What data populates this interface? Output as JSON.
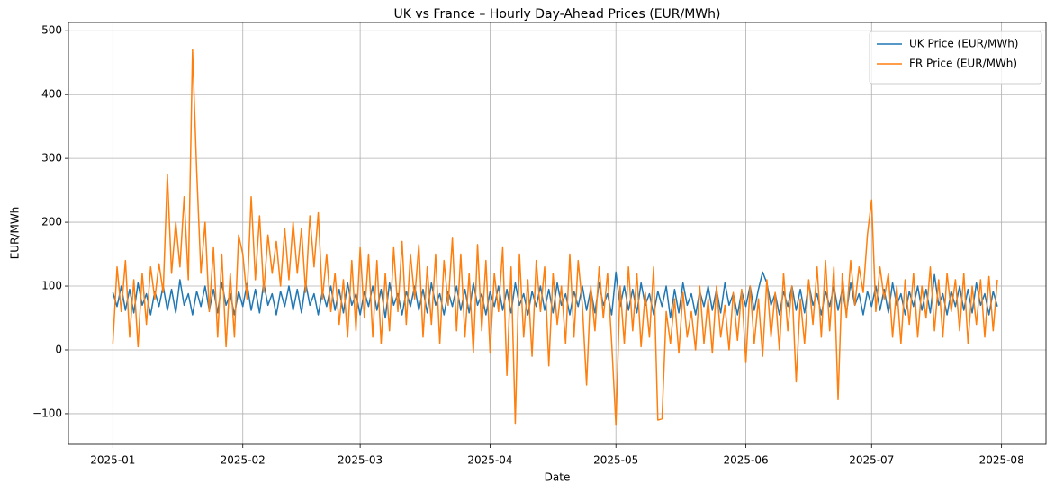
{
  "chart_data": {
    "type": "line",
    "title": "UK vs France – Hourly Day-Ahead Prices (EUR/MWh)",
    "x_label": "Date",
    "y_label": "EUR/MWh",
    "x": [
      0,
      1,
      2,
      3,
      4,
      5,
      6,
      7,
      8,
      9,
      10,
      11,
      12,
      13,
      14,
      15,
      16,
      17,
      18,
      19,
      20,
      21,
      22,
      23,
      24,
      25,
      26,
      27,
      28,
      29,
      30,
      31,
      32,
      33,
      34,
      35,
      36,
      37,
      38,
      39,
      40,
      41,
      42,
      43,
      44,
      45,
      46,
      47,
      48,
      49,
      50,
      51,
      52,
      53,
      54,
      55,
      56,
      57,
      58,
      59,
      60,
      61,
      62,
      63,
      64,
      65,
      66,
      67,
      68,
      69,
      70,
      71,
      72,
      73,
      74,
      75,
      76,
      77,
      78,
      79,
      80,
      81,
      82,
      83,
      84,
      85,
      86,
      87,
      88,
      89,
      90,
      91,
      92,
      93,
      94,
      95,
      96,
      97,
      98,
      99,
      100,
      101,
      102,
      103,
      104,
      105,
      106,
      107,
      108,
      109,
      110,
      111,
      112,
      113,
      114,
      115,
      116,
      117,
      118,
      119,
      120,
      121,
      122,
      123,
      124,
      125,
      126,
      127,
      128,
      129,
      130,
      131,
      132,
      133,
      134,
      135,
      136,
      137,
      138,
      139,
      140,
      141,
      142,
      143,
      144,
      145,
      146,
      147,
      148,
      149,
      150,
      151,
      152,
      153,
      154,
      155,
      156,
      157,
      158,
      159,
      160,
      161,
      162,
      163,
      164,
      165,
      166,
      167,
      168,
      169,
      170,
      171,
      172,
      173,
      174,
      175,
      176,
      177,
      178,
      179,
      180,
      181,
      182,
      183,
      184,
      185,
      186,
      187,
      188,
      189,
      190,
      191,
      192,
      193,
      194,
      195,
      196,
      197,
      198,
      199,
      200,
      201,
      202,
      203,
      204,
      205,
      206,
      207,
      208,
      209,
      210,
      211
    ],
    "series": [
      {
        "name": "UK Price (EUR/MWh)",
        "color": "#1f77b4",
        "values": [
          90,
          68,
          100,
          62,
          95,
          58,
          105,
          70,
          88,
          55,
          92,
          68,
          100,
          62,
          95,
          58,
          110,
          70,
          88,
          55,
          92,
          68,
          100,
          62,
          95,
          58,
          105,
          70,
          88,
          55,
          92,
          68,
          104,
          62,
          95,
          58,
          105,
          70,
          88,
          55,
          92,
          68,
          100,
          62,
          95,
          58,
          105,
          70,
          88,
          55,
          92,
          68,
          100,
          62,
          95,
          58,
          105,
          70,
          88,
          55,
          92,
          68,
          100,
          62,
          95,
          50,
          105,
          70,
          88,
          55,
          92,
          68,
          100,
          62,
          95,
          58,
          105,
          70,
          88,
          55,
          92,
          68,
          100,
          62,
          95,
          58,
          105,
          70,
          88,
          55,
          92,
          68,
          100,
          62,
          95,
          58,
          105,
          70,
          88,
          55,
          92,
          68,
          100,
          62,
          95,
          58,
          105,
          70,
          88,
          55,
          92,
          68,
          100,
          62,
          95,
          58,
          105,
          70,
          88,
          55,
          122,
          68,
          100,
          62,
          95,
          58,
          105,
          70,
          88,
          55,
          92,
          68,
          100,
          50,
          95,
          58,
          105,
          70,
          88,
          55,
          92,
          68,
          100,
          62,
          95,
          58,
          105,
          70,
          88,
          55,
          92,
          68,
          100,
          62,
          95,
          122,
          105,
          70,
          88,
          55,
          92,
          68,
          100,
          62,
          95,
          58,
          105,
          70,
          88,
          55,
          92,
          68,
          100,
          62,
          95,
          58,
          105,
          70,
          88,
          55,
          92,
          68,
          100,
          62,
          95,
          58,
          105,
          70,
          88,
          55,
          92,
          68,
          100,
          62,
          95,
          58,
          118,
          70,
          88,
          55,
          92,
          68,
          100,
          62,
          95,
          58,
          105,
          70,
          88,
          55,
          92,
          68
        ]
      },
      {
        "name": "FR Price (EUR/MWh)",
        "color": "#ff7f0e",
        "values": [
          10,
          130,
          60,
          140,
          20,
          110,
          5,
          120,
          40,
          130,
          80,
          135,
          90,
          275,
          120,
          200,
          130,
          240,
          110,
          470,
          280,
          120,
          200,
          60,
          160,
          20,
          150,
          5,
          120,
          20,
          180,
          150,
          80,
          240,
          110,
          210,
          90,
          180,
          120,
          170,
          100,
          190,
          110,
          200,
          120,
          190,
          90,
          210,
          130,
          215,
          80,
          150,
          60,
          120,
          40,
          110,
          20,
          140,
          30,
          160,
          50,
          150,
          20,
          140,
          10,
          120,
          30,
          160,
          60,
          170,
          40,
          150,
          80,
          165,
          20,
          130,
          40,
          150,
          10,
          140,
          70,
          175,
          30,
          150,
          20,
          120,
          -5,
          165,
          30,
          140,
          -5,
          120,
          60,
          160,
          -40,
          130,
          -115,
          150,
          20,
          110,
          -10,
          140,
          60,
          130,
          -25,
          120,
          40,
          100,
          10,
          150,
          20,
          140,
          70,
          -55,
          100,
          30,
          130,
          50,
          120,
          10,
          -118,
          100,
          10,
          130,
          30,
          120,
          5,
          90,
          20,
          130,
          -110,
          -108,
          60,
          10,
          80,
          -5,
          90,
          20,
          60,
          0,
          100,
          10,
          80,
          -5,
          100,
          20,
          70,
          0,
          90,
          15,
          95,
          -20,
          100,
          10,
          80,
          -10,
          110,
          20,
          90,
          0,
          120,
          30,
          100,
          -50,
          80,
          10,
          110,
          40,
          130,
          20,
          140,
          30,
          130,
          -78,
          120,
          50,
          140,
          70,
          130,
          90,
          180,
          235,
          60,
          130,
          80,
          120,
          20,
          100,
          10,
          110,
          40,
          120,
          20,
          100,
          50,
          130,
          30,
          110,
          20,
          120,
          60,
          110,
          30,
          120,
          10,
          100,
          40,
          110,
          20,
          115,
          30,
          110
        ]
      }
    ],
    "xlim": [
      -10.6,
      222.6
    ],
    "xticks": [
      {
        "value": 0,
        "label": "2025-01"
      },
      {
        "value": 31,
        "label": "2025-02"
      },
      {
        "value": 59,
        "label": "2025-03"
      },
      {
        "value": 90,
        "label": "2025-04"
      },
      {
        "value": 120,
        "label": "2025-05"
      },
      {
        "value": 151,
        "label": "2025-06"
      },
      {
        "value": 181,
        "label": "2025-07"
      },
      {
        "value": 212,
        "label": "2025-08"
      }
    ],
    "ylim": [
      -148,
      513
    ],
    "yticks": [
      {
        "value": -100,
        "label": "−100"
      },
      0,
      100,
      200,
      300,
      400,
      500
    ],
    "grid": true,
    "legend": "upper right"
  }
}
